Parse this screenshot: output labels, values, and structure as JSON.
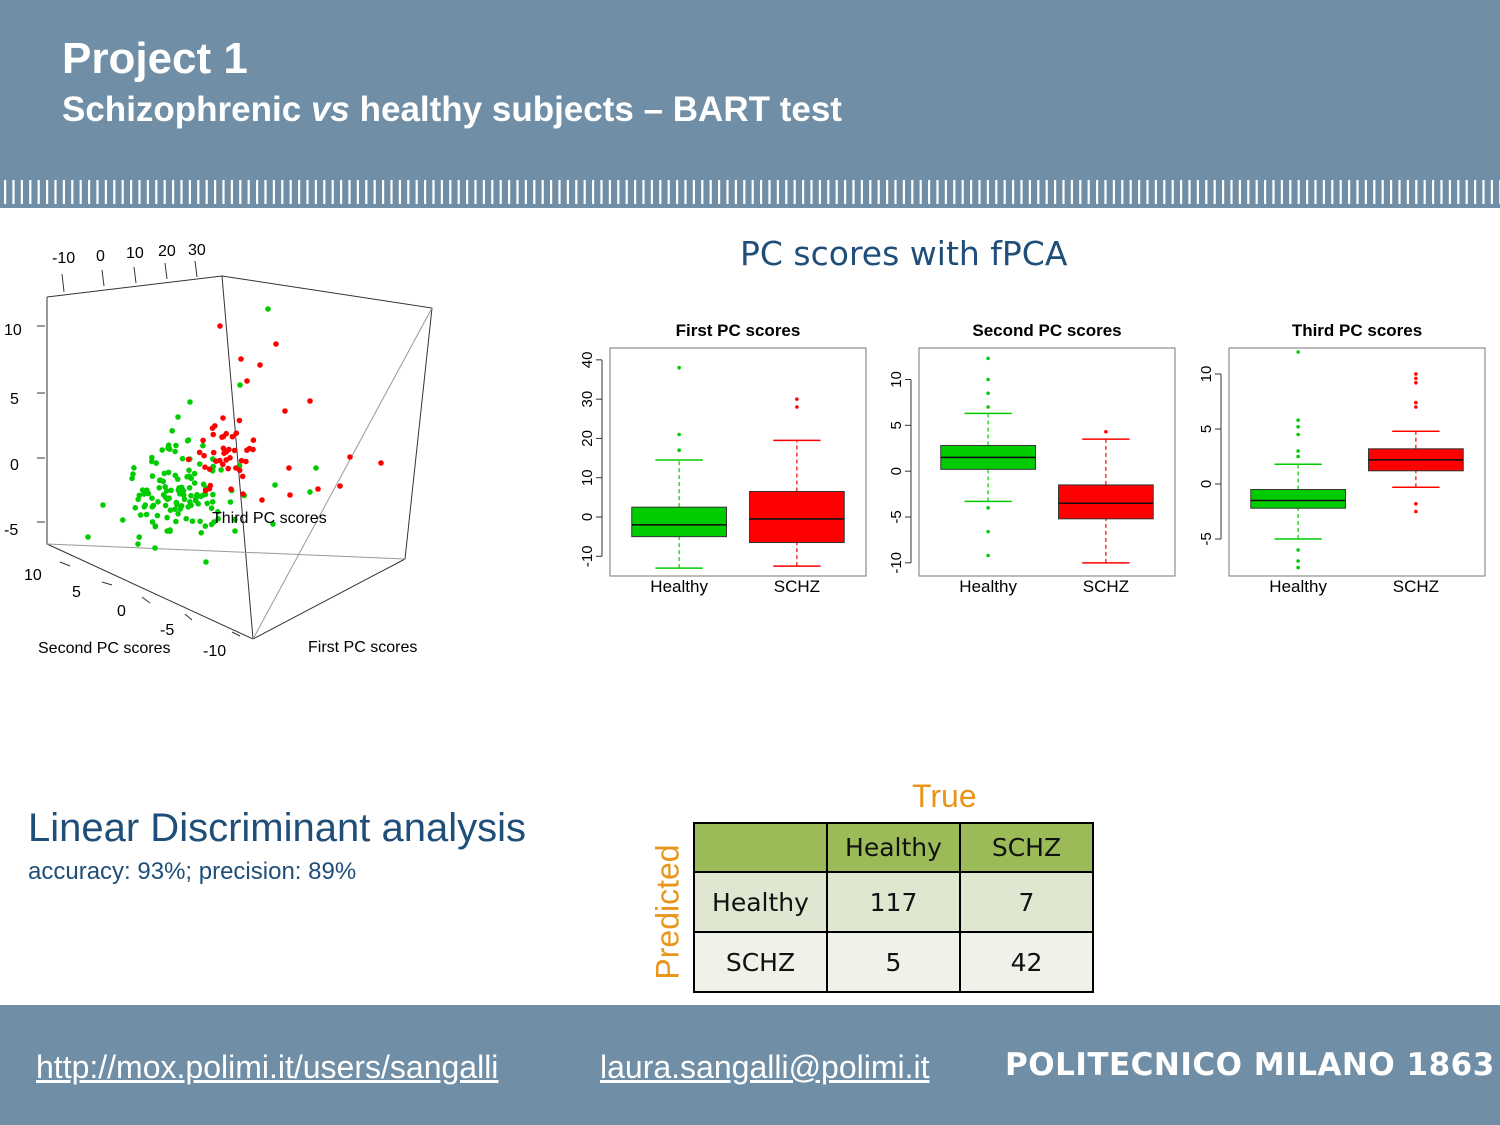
{
  "header": {
    "title": "Project 1",
    "subtitle_before": "Schizophrenic ",
    "subtitle_italic": "vs",
    "subtitle_after": " healthy subjects – BART test"
  },
  "fpca_title": "PC scores with fPCA",
  "colors": {
    "healthy": "#00cc00",
    "schz": "#ff0000",
    "header_bg": "#708fa6",
    "accent_text": "#1f4e79",
    "orange": "#e8951a"
  },
  "plot3d": {
    "top_ticks": [
      "-10",
      "0",
      "10",
      "20",
      "30"
    ],
    "left_ticks": [
      "10",
      "5",
      "0",
      "-5"
    ],
    "bottom_ticks": [
      "10",
      "5",
      "0",
      "-5",
      "-10"
    ],
    "z_label": "Third PC scores",
    "y_label": "Second PC scores",
    "x_label": "First PC scores"
  },
  "chart_data": [
    {
      "type": "box",
      "title": "First PC scores",
      "categories": [
        "Healthy",
        "SCHZ"
      ],
      "ylim": [
        -14,
        42
      ],
      "yticks": [
        -10,
        0,
        10,
        20,
        30,
        40
      ],
      "boxes": [
        {
          "name": "Healthy",
          "color": "#00cc00",
          "whisker_low": -13,
          "q1": -5,
          "median": -2,
          "q3": 2.5,
          "whisker_high": 14.5,
          "outliers": [
            17,
            21,
            38
          ]
        },
        {
          "name": "SCHZ",
          "color": "#ff0000",
          "whisker_low": -12.5,
          "q1": -6.5,
          "median": -0.5,
          "q3": 6.5,
          "whisker_high": 19.5,
          "outliers": [
            28,
            30
          ]
        }
      ]
    },
    {
      "type": "box",
      "title": "Second PC scores",
      "categories": [
        "Healthy",
        "SCHZ"
      ],
      "ylim": [
        -11,
        13
      ],
      "yticks": [
        -10,
        -5,
        0,
        5,
        10
      ],
      "boxes": [
        {
          "name": "Healthy",
          "color": "#00cc00",
          "whisker_low": -3.3,
          "q1": 0.2,
          "median": 1.5,
          "q3": 2.8,
          "whisker_high": 6.3,
          "outliers": [
            -4,
            -6.6,
            -9.2,
            7,
            8.5,
            10,
            12.3
          ]
        },
        {
          "name": "SCHZ",
          "color": "#ff0000",
          "whisker_low": -10,
          "q1": -5.2,
          "median": -3.5,
          "q3": -1.5,
          "whisker_high": 3.5,
          "outliers": [
            4.3
          ]
        }
      ]
    },
    {
      "type": "box",
      "title": "Third PC scores",
      "categories": [
        "Healthy",
        "SCHZ"
      ],
      "ylim": [
        -8,
        12
      ],
      "yticks": [
        -5,
        0,
        5,
        10
      ],
      "boxes": [
        {
          "name": "Healthy",
          "color": "#00cc00",
          "whisker_low": -5,
          "q1": -2.2,
          "median": -1.5,
          "q3": -0.5,
          "whisker_high": 1.8,
          "outliers": [
            2.5,
            3,
            4.5,
            5.2,
            5.8,
            -6,
            -7,
            -7.6,
            12
          ]
        },
        {
          "name": "SCHZ",
          "color": "#ff0000",
          "whisker_low": -0.3,
          "q1": 1.2,
          "median": 2.2,
          "q3": 3.2,
          "whisker_high": 4.8,
          "outliers": [
            -1.8,
            -2.5,
            7,
            7.4,
            9.2,
            9.6,
            10
          ]
        }
      ]
    }
  ],
  "lda": {
    "title": "Linear Discriminant analysis",
    "subtitle": "accuracy: 93%; precision: 89%"
  },
  "confusion": {
    "true_label": "True",
    "predicted_label": "Predicted",
    "col_headers": [
      "Healthy",
      "SCHZ"
    ],
    "rows": [
      {
        "label": "Healthy",
        "values": [
          "117",
          "7"
        ]
      },
      {
        "label": "SCHZ",
        "values": [
          "5",
          "42"
        ]
      }
    ]
  },
  "footer": {
    "url": "http://mox.polimi.it/users/sangalli",
    "email": "laura.sangalli@polimi.it",
    "brand": "POLITECNICO MILANO 1863"
  }
}
